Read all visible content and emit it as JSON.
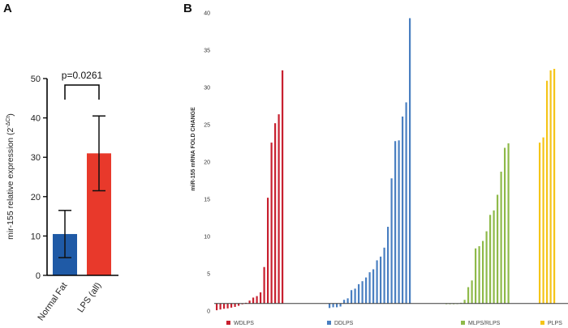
{
  "chart_data": [
    {
      "panel": "A",
      "type": "bar",
      "categories": [
        "Normal Fat",
        "LPS (all)"
      ],
      "values": [
        10.5,
        31
      ],
      "errors": [
        6,
        9.5
      ],
      "colors": [
        "#1f5aa6",
        "#e8392b"
      ],
      "ylabel": "mir-155 relative expression (2",
      "ylabel_sup": "-ΔCt",
      "ylabel_end": ")",
      "ylim": [
        0,
        50
      ],
      "yticks": [
        "0",
        "10",
        "20",
        "30",
        "40",
        "50"
      ],
      "annotation": "p=0.0261"
    },
    {
      "panel": "B",
      "type": "bar",
      "ylabel": "miR-155 mRNA FOLD CHANGE",
      "ylim": [
        0,
        40
      ],
      "yticks": [
        "0",
        "5",
        "10",
        "15",
        "20",
        "25",
        "30",
        "35",
        "40"
      ],
      "baseline": 1,
      "series": [
        {
          "name": "WDLPS",
          "color": "#c8202f",
          "values": [
            0.1,
            0.2,
            0.3,
            0.35,
            0.45,
            0.55,
            0.7,
            0.9,
            1.1,
            1.4,
            1.8,
            2.0,
            2.5,
            5.9,
            15.2,
            22.6,
            25.2,
            26.4,
            32.3
          ]
        },
        {
          "name": "DDLPS",
          "color": "#4a7fc1",
          "values": [
            0.4,
            0.5,
            0.5,
            0.6,
            1.5,
            1.7,
            2.8,
            3.0,
            3.6,
            4.0,
            4.5,
            5.2,
            5.6,
            6.8,
            7.3,
            8.5,
            11.3,
            17.8,
            22.8,
            22.9,
            26.1,
            28.0,
            39.3
          ]
        },
        {
          "name": "MLPS/RLPS",
          "color": "#8fba4a",
          "values": [
            0.95,
            0.98,
            1.0,
            1.02,
            1.1,
            1.5,
            3.2,
            4.1,
            8.4,
            8.7,
            9.4,
            10.7,
            12.9,
            13.5,
            15.6,
            18.7,
            21.9,
            22.5
          ]
        },
        {
          "name": "PLPS",
          "color": "#f5c518",
          "values": [
            22.6,
            23.3,
            30.9,
            32.3,
            32.5
          ]
        }
      ]
    }
  ]
}
